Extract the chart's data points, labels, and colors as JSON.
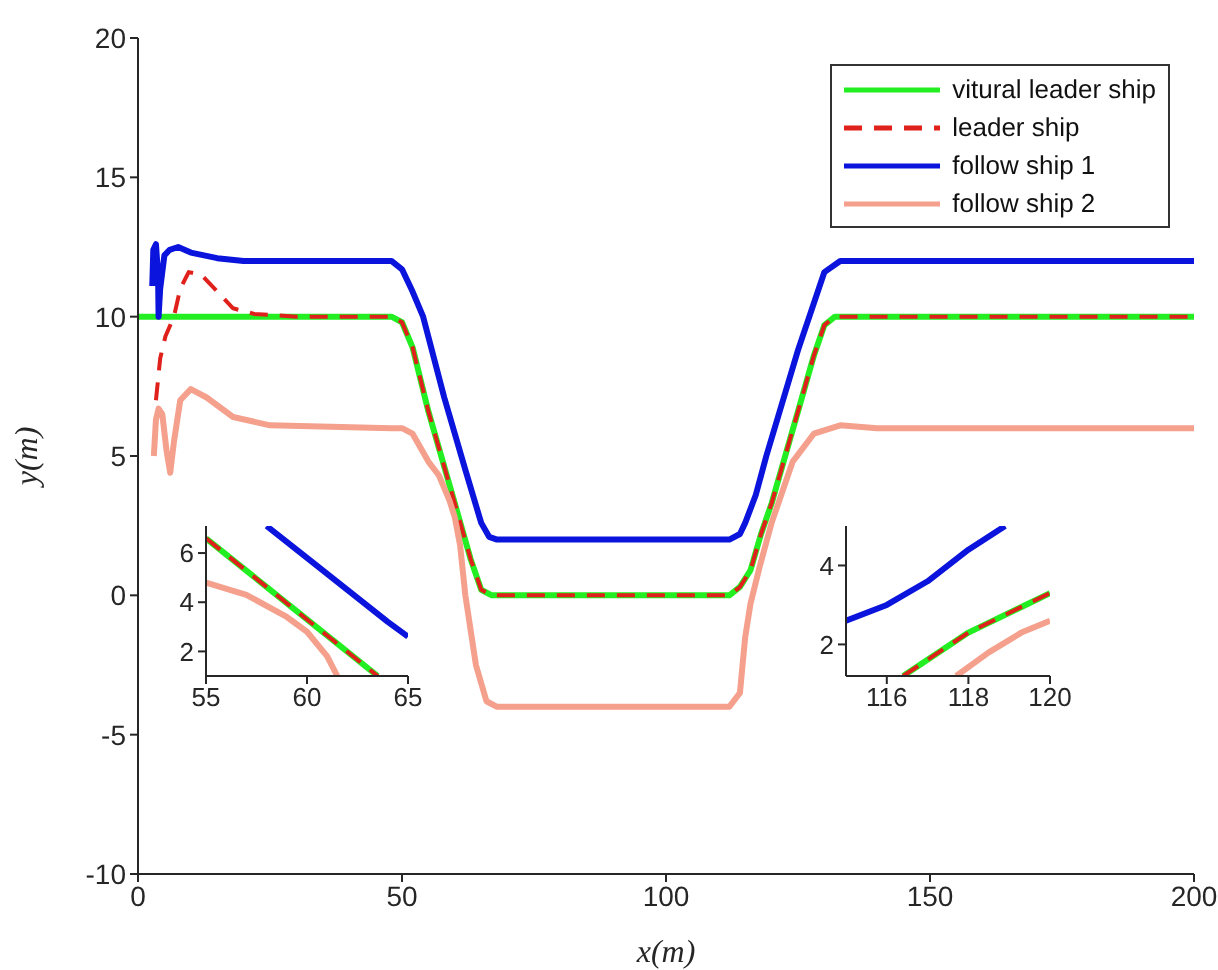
{
  "chart_data": [
    {
      "type": "line",
      "xlabel": "x(m)",
      "ylabel": "y(m)",
      "xlim": [
        0,
        200
      ],
      "ylim": [
        -10,
        20
      ],
      "xticks": [
        0,
        50,
        100,
        150,
        200
      ],
      "yticks": [
        -10,
        -5,
        0,
        5,
        10,
        15,
        20
      ],
      "legend": "top right",
      "series": [
        {
          "name": "vitural leader ship",
          "color": "#22ee22",
          "line_style": "solid",
          "x": [
            0,
            48,
            50,
            52,
            55,
            60,
            63,
            65,
            67,
            112,
            114,
            116,
            118,
            120,
            125,
            128,
            130,
            132,
            200
          ],
          "values": [
            10,
            10,
            9.8,
            8.9,
            6.6,
            3.3,
            1.3,
            0.2,
            0,
            0,
            0.3,
            0.9,
            2.2,
            3.3,
            6.6,
            8.6,
            9.7,
            10,
            10
          ]
        },
        {
          "name": "leader ship",
          "color": "#e0201b",
          "line_style": "dashed",
          "x": [
            3.4,
            4.2,
            5.2,
            6.8,
            8,
            9.6,
            12,
            15,
            18,
            22,
            30,
            48,
            50,
            52,
            55,
            60,
            63,
            65,
            67,
            112,
            114,
            116,
            118,
            120,
            125,
            128,
            130,
            132,
            200
          ],
          "values": [
            7,
            8.5,
            9.3,
            10,
            11,
            11.6,
            11.5,
            10.9,
            10.3,
            10.1,
            10,
            10,
            9.8,
            8.9,
            6.6,
            3.3,
            1.3,
            0.2,
            0,
            0,
            0.3,
            0.9,
            2.2,
            3.3,
            6.6,
            8.6,
            9.7,
            10,
            10
          ]
        },
        {
          "name": "follow ship 1",
          "color": "#0a14dc",
          "line_style": "solid",
          "x": [
            2.7,
            2.9,
            3.4,
            3.8,
            3.9,
            4.2,
            5,
            6,
            7.6,
            10,
            15,
            20,
            30,
            48,
            50,
            52,
            54,
            58,
            62,
            65,
            66.5,
            68,
            112,
            114,
            115,
            117,
            119,
            125,
            130,
            133,
            200
          ],
          "values": [
            11.1,
            12.4,
            12.6,
            11.5,
            10,
            11,
            12.2,
            12.4,
            12.5,
            12.3,
            12.1,
            12,
            12,
            12,
            11.7,
            10.9,
            10,
            7.1,
            4.5,
            2.6,
            2.1,
            2,
            2,
            2.2,
            2.6,
            3.6,
            5,
            8.8,
            11.6,
            12,
            12
          ]
        },
        {
          "name": "follow ship 2",
          "color": "#f4a08c",
          "line_style": "solid",
          "x": [
            3,
            3.4,
            3.9,
            4.6,
            5.4,
            6.1,
            6.8,
            8,
            10,
            13,
            18,
            25,
            48,
            50,
            52,
            55,
            57,
            59,
            60,
            61,
            62,
            64,
            66,
            68,
            112,
            114,
            115,
            116,
            117.7,
            120,
            124,
            128,
            133,
            140,
            200
          ],
          "values": [
            5,
            6.3,
            6.7,
            6.5,
            5.2,
            4.4,
            5.5,
            7,
            7.4,
            7.1,
            6.4,
            6.1,
            6,
            6,
            5.8,
            4.8,
            4.3,
            3.4,
            2.8,
            1.8,
            0,
            -2.5,
            -3.8,
            -4,
            -4,
            -3.5,
            -1.5,
            -0.3,
            1,
            2.6,
            4.8,
            5.8,
            6.1,
            6,
            6
          ]
        }
      ]
    },
    {
      "type": "line",
      "xlim": [
        55,
        65
      ],
      "ylim": [
        1,
        7.1
      ],
      "xticks": [
        55,
        60,
        65
      ],
      "yticks": [
        2,
        4,
        6
      ],
      "series": [
        {
          "color": "#22ee22",
          "line_style": "solid",
          "x": [
            55,
            60,
            63.5
          ],
          "values": [
            6.6,
            3.3,
            1
          ]
        },
        {
          "color": "#e0201b",
          "line_style": "dashed",
          "x": [
            55,
            60,
            63.5
          ],
          "values": [
            6.6,
            3.3,
            1
          ]
        },
        {
          "color": "#0a14dc",
          "line_style": "solid",
          "x": [
            58,
            60,
            62,
            64,
            65
          ],
          "values": [
            7.1,
            5.8,
            4.5,
            3.2,
            2.6
          ]
        },
        {
          "color": "#f4a08c",
          "line_style": "solid",
          "x": [
            55,
            57,
            59,
            60,
            61,
            61.5
          ],
          "values": [
            4.8,
            4.3,
            3.4,
            2.8,
            1.8,
            1
          ]
        }
      ]
    },
    {
      "type": "line",
      "xlim": [
        115,
        120
      ],
      "ylim": [
        1.2,
        5
      ],
      "xticks": [
        116,
        118,
        120
      ],
      "yticks": [
        2,
        4
      ],
      "series": [
        {
          "color": "#22ee22",
          "line_style": "solid",
          "x": [
            116.4,
            118,
            120
          ],
          "values": [
            1.2,
            2.3,
            3.3
          ]
        },
        {
          "color": "#e0201b",
          "line_style": "dashed",
          "x": [
            116.4,
            118,
            120
          ],
          "values": [
            1.2,
            2.3,
            3.3
          ]
        },
        {
          "color": "#0a14dc",
          "line_style": "solid",
          "x": [
            115,
            116,
            117,
            118,
            118.9
          ],
          "values": [
            2.6,
            3,
            3.6,
            4.4,
            5
          ]
        },
        {
          "color": "#f4a08c",
          "line_style": "solid",
          "x": [
            117.7,
            118.5,
            119.3,
            120
          ],
          "values": [
            1.2,
            1.8,
            2.3,
            2.6
          ]
        }
      ]
    }
  ]
}
